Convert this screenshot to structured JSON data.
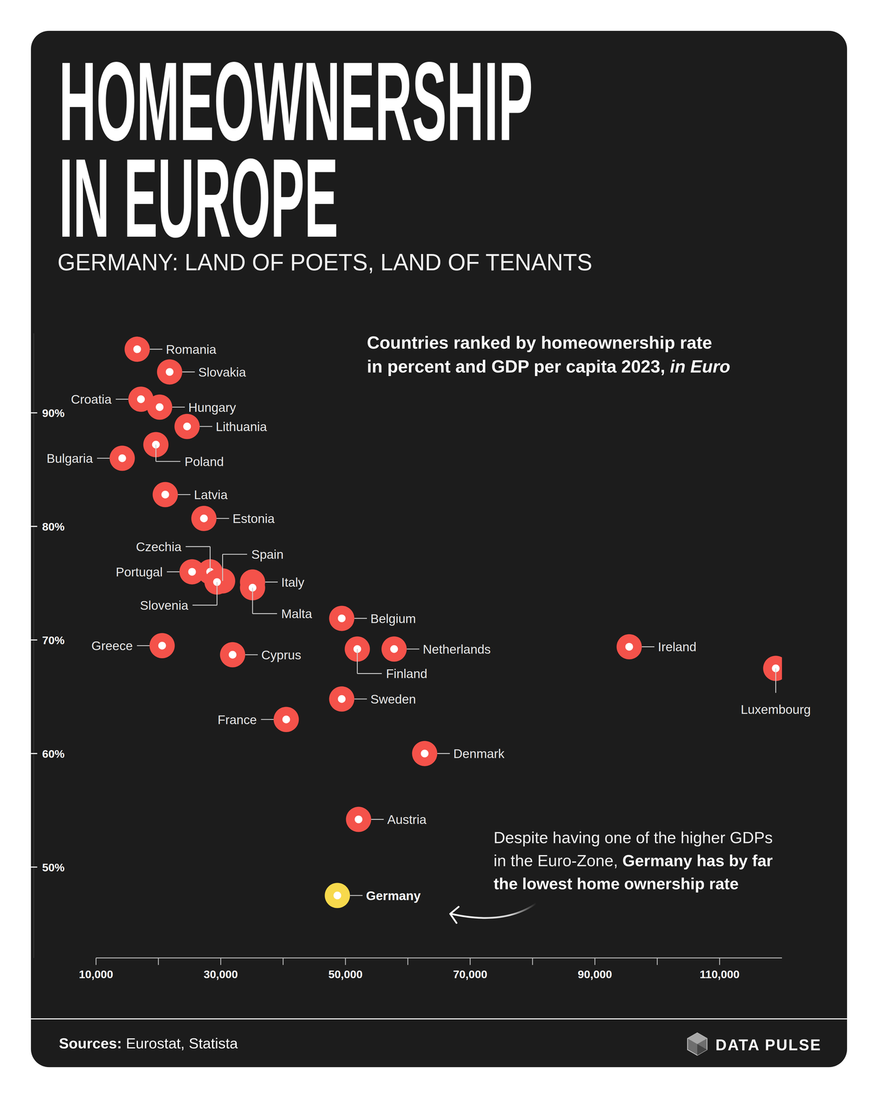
{
  "chart_data": {
    "type": "scatter",
    "title": [
      "HOMEOWNERSHIP",
      "IN EUROPE"
    ],
    "subtitle": "GERMANY: LAND OF POETS, LAND OF TENANTS",
    "caption": {
      "lines": [
        "Countries ranked by homeownership rate",
        "in percent and GDP per capita 2023, "
      ],
      "emphasis": "in Euro"
    },
    "annotation": {
      "text": [
        "Despite having one of the higher GDPs",
        "in the Euro-Zone, "
      ],
      "emphasis": [
        "Germany has by far",
        "the lowest home ownership rate"
      ]
    },
    "labels": [
      "Romania",
      "Slovakia",
      "Croatia",
      "Hungary",
      "Lithuania",
      "Poland",
      "Bulgaria",
      "Latvia",
      "Estonia",
      "Czechia",
      "Portugal",
      "Spain",
      "Slovenia",
      "Italy",
      "Malta",
      "Belgium",
      "Greece",
      "Cyprus",
      "Finland",
      "Netherlands",
      "Ireland",
      "Luxembourg",
      "Sweden",
      "France",
      "Denmark",
      "Austria",
      "Germany"
    ],
    "x": [
      16600,
      21800,
      17200,
      20200,
      24600,
      19600,
      14200,
      21100,
      27300,
      28300,
      25400,
      30300,
      29400,
      35100,
      35100,
      49400,
      20600,
      31900,
      51900,
      57800,
      95500,
      119000,
      49400,
      40500,
      62700,
      52100,
      48700
    ],
    "values": [
      95.6,
      93.6,
      91.2,
      90.5,
      88.8,
      87.2,
      86.0,
      82.8,
      80.7,
      76.0,
      76.0,
      75.2,
      75.1,
      75.1,
      74.6,
      71.9,
      69.5,
      68.7,
      69.2,
      69.2,
      69.4,
      67.5,
      64.8,
      63.0,
      60.0,
      54.2,
      47.5
    ],
    "colors": [
      "#f4524a",
      "#f4524a",
      "#f4524a",
      "#f4524a",
      "#f4524a",
      "#f4524a",
      "#f4524a",
      "#f4524a",
      "#f4524a",
      "#f4524a",
      "#f4524a",
      "#f4524a",
      "#f4524a",
      "#f4524a",
      "#f4524a",
      "#f4524a",
      "#f4524a",
      "#f4524a",
      "#f4524a",
      "#f4524a",
      "#f4524a",
      "#f4524a",
      "#f4524a",
      "#f4524a",
      "#f4524a",
      "#f4524a",
      "#f7d94c"
    ],
    "xlim": [
      10000,
      120000
    ],
    "xticks": [
      {
        "value": 10000,
        "label": "10,000"
      },
      {
        "value": 30000,
        "label": "30,000"
      },
      {
        "value": 50000,
        "label": "50,000"
      },
      {
        "value": 70000,
        "label": "70,000"
      },
      {
        "value": 90000,
        "label": "90,000"
      },
      {
        "value": 110000,
        "label": "110,000"
      }
    ],
    "ylim": [
      42,
      97
    ],
    "yticks": [
      {
        "value": 50,
        "label": "50%"
      },
      {
        "value": 60,
        "label": "60%"
      },
      {
        "value": 70,
        "label": "70%"
      },
      {
        "value": 80,
        "label": "80%"
      },
      {
        "value": 90,
        "label": "90%"
      }
    ],
    "grid": false,
    "source": {
      "label": "Sources:",
      "text": " Eurostat, Statista"
    },
    "brand": "DATA PULSE"
  }
}
